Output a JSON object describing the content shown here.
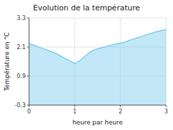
{
  "chart_data": {
    "type": "area",
    "title": "Evolution de la température",
    "xlabel": "heure par heure",
    "ylabel": "Température en °C",
    "x": [
      0,
      0.1,
      0.2,
      0.3,
      0.4,
      0.5,
      0.6,
      0.7,
      0.8,
      0.9,
      1.0,
      1.1,
      1.2,
      1.3,
      1.4,
      1.5,
      1.6,
      1.7,
      1.8,
      1.9,
      2.0,
      2.1,
      2.2,
      2.3,
      2.4,
      2.5,
      2.6,
      2.7,
      2.8,
      2.9,
      3.0
    ],
    "values": [
      2.25,
      2.18,
      2.11,
      2.04,
      1.97,
      1.9,
      1.82,
      1.72,
      1.62,
      1.52,
      1.42,
      1.52,
      1.68,
      1.84,
      1.96,
      2.03,
      2.08,
      2.13,
      2.18,
      2.22,
      2.26,
      2.3,
      2.38,
      2.44,
      2.5,
      2.56,
      2.62,
      2.68,
      2.74,
      2.78,
      2.82
    ],
    "color": "#77ccee",
    "xlim": [
      0,
      3
    ],
    "ylim": [
      -0.3,
      3.3
    ],
    "xticks": [
      0,
      1,
      2,
      3
    ],
    "yticks": [
      -0.3,
      0.9,
      2.1,
      3.3
    ],
    "grid": true
  }
}
